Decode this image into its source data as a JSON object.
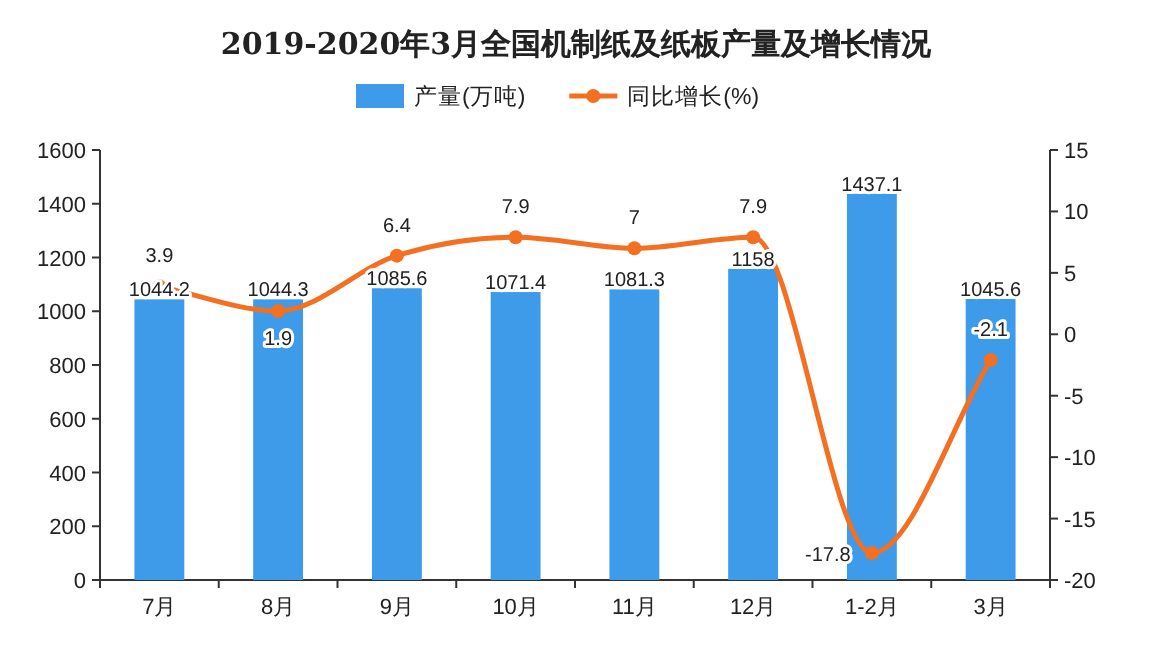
{
  "chart_data": {
    "type": "bar",
    "title": "2019-2020年3月全国机制纸及纸板产量及增长情况",
    "categories": [
      "7月",
      "8月",
      "9月",
      "10月",
      "11月",
      "12月",
      "1-2月",
      "3月"
    ],
    "series": [
      {
        "name": "产量(万吨)",
        "color": "#3d9be9",
        "values": [
          1044.2,
          1044.3,
          1085.6,
          1071.4,
          1081.3,
          1158,
          1437.1,
          1045.6
        ]
      },
      {
        "name": "同比增长(%)",
        "type": "line",
        "axis": "y2",
        "color": "#f36f21",
        "values": [
          3.9,
          1.9,
          6.4,
          7.9,
          7,
          7.9,
          -17.8,
          -2.1
        ]
      }
    ],
    "ylim": [
      0,
      1600
    ],
    "yticks": [
      0,
      200,
      400,
      600,
      800,
      1000,
      1200,
      1400,
      1600
    ],
    "y2lim": [
      -20,
      15
    ],
    "y2ticks": [
      -20,
      -15,
      -10,
      -5,
      0,
      5,
      10,
      15
    ],
    "data_labels": true,
    "legend": "top",
    "grid": false,
    "marker": "circle",
    "line_style": "solid"
  }
}
